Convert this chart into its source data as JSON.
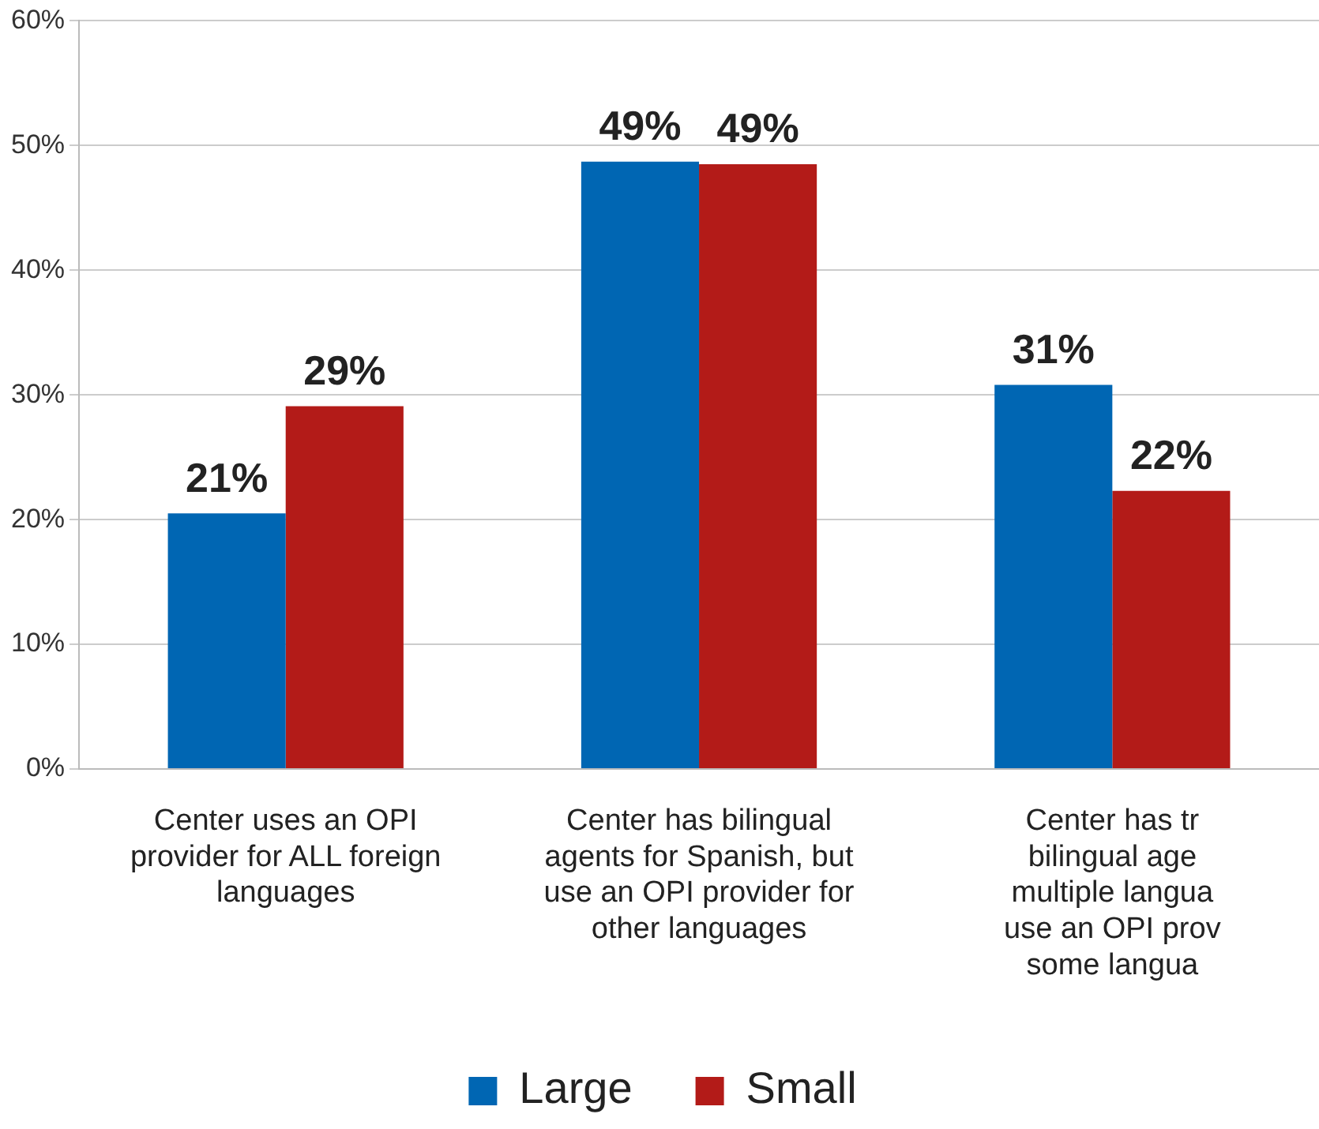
{
  "chart_data": {
    "type": "bar",
    "categories": [
      "Center uses an OPI\nprovider for ALL foreign\nlanguages",
      "Center has bilingual\nagents for Spanish, but\nuse an OPI provider for\nother languages",
      "Center has tr\nbilingual age\nmultiple langua\nuse an OPI prov\nsome langua"
    ],
    "series": [
      {
        "name": "Large",
        "color": "#0066b3",
        "values": [
          20.5,
          48.7,
          30.8
        ],
        "value_labels": [
          "21%",
          "49%",
          "31%"
        ]
      },
      {
        "name": "Small",
        "color": "#b31b18",
        "values": [
          29.1,
          48.5,
          22.3
        ],
        "value_labels": [
          "29%",
          "49%",
          "22%"
        ]
      }
    ],
    "ylim": [
      0,
      60
    ],
    "yticks": [
      {
        "value": 0,
        "label": "0%"
      },
      {
        "value": 10,
        "label": "10%"
      },
      {
        "value": 20,
        "label": "20%"
      },
      {
        "value": 30,
        "label": "30%"
      },
      {
        "value": 40,
        "label": "40%"
      },
      {
        "value": 50,
        "label": "50%"
      },
      {
        "value": 60,
        "label": "60%"
      }
    ],
    "grid": "y",
    "legend": "bottom"
  }
}
